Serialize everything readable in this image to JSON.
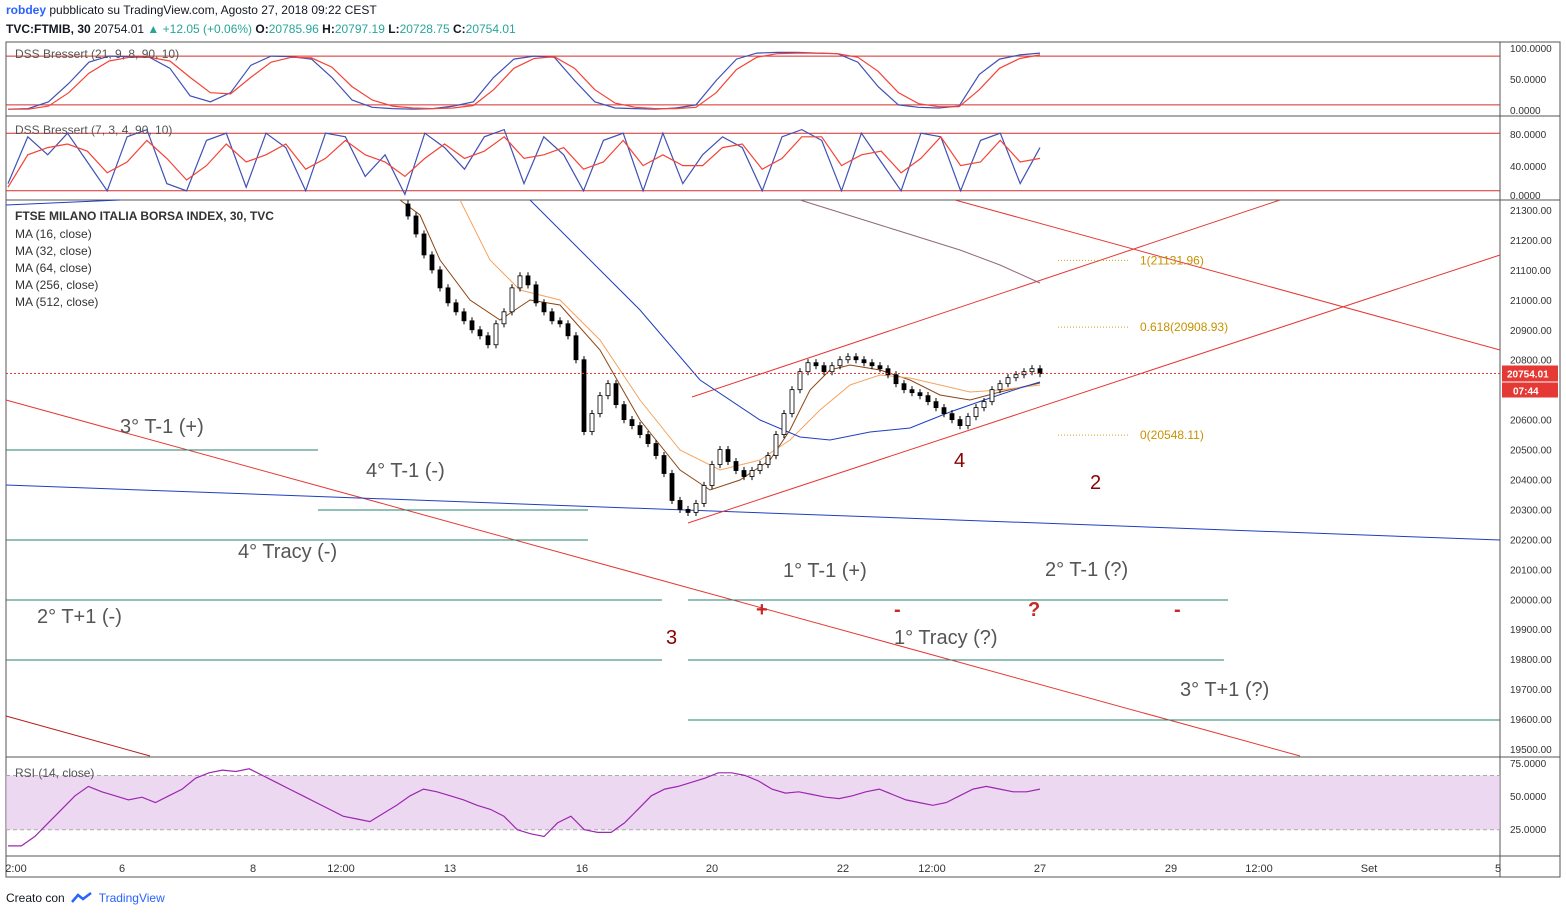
{
  "header": {
    "user": "robdey",
    "published": "pubblicato su TradingView.com, Agosto 27, 2018 09:22 CEST",
    "symbol": "TVC:FTMIB, 30",
    "last": "20754.01",
    "arrow": "▲",
    "change": "+12.05 (+0.06%)",
    "o_label": "O:",
    "o": "20785.96",
    "h_label": "H:",
    "h": "20797.19",
    "l_label": "L:",
    "l": "20728.75",
    "c_label": "C:",
    "c": "20754.01"
  },
  "footer": {
    "created": "Creato con",
    "brand": "TradingView"
  },
  "legend": {
    "title": "FTSE MILANO ITALIA BORSA INDEX, 30, TVC",
    "ma": [
      "MA (16, close)",
      "MA (32, close)",
      "MA (64, close)",
      "MA (256, close)",
      "MA (512, close)"
    ]
  },
  "chart_data": [
    {
      "type": "line",
      "title": "DSS Bressert (21, 9, 8, 90, 10)",
      "ylim": [
        0,
        100
      ],
      "ticks": [
        "100.0000",
        "50.0000",
        "0.0000"
      ],
      "levels": [
        90,
        10
      ],
      "colors": {
        "fast": "#3f51b5",
        "slow": "#f44336",
        "level": "#d32f2f"
      },
      "series": [
        {
          "values": [
            3,
            4,
            15,
            45,
            80,
            90,
            89,
            88,
            70,
            25,
            15,
            30,
            75,
            90,
            89,
            85,
            55,
            18,
            6,
            4,
            3,
            4,
            8,
            15,
            55,
            85,
            90,
            88,
            50,
            15,
            5,
            4,
            3,
            5,
            10,
            50,
            85,
            95,
            96,
            96,
            95,
            94,
            80,
            40,
            10,
            6,
            5,
            8,
            60,
            85,
            92,
            95
          ]
        },
        {
          "values": [
            3,
            3,
            8,
            30,
            62,
            82,
            88,
            88,
            82,
            55,
            30,
            28,
            55,
            80,
            88,
            87,
            72,
            40,
            18,
            8,
            5,
            4,
            5,
            9,
            35,
            70,
            86,
            89,
            70,
            35,
            13,
            6,
            4,
            4,
            6,
            30,
            68,
            88,
            94,
            95,
            95,
            94,
            88,
            65,
            30,
            12,
            7,
            7,
            35,
            70,
            86,
            92
          ]
        }
      ]
    },
    {
      "type": "line",
      "title": "DSS Bressert (7, 3, 4, 90, 10)",
      "ylim": [
        0,
        100
      ],
      "ticks": [
        "80.0000",
        "40.0000",
        "0.0000"
      ],
      "levels": [
        90,
        10
      ],
      "colors": {
        "fast": "#3f51b5",
        "slow": "#f44336",
        "level": "#d32f2f"
      },
      "series": [
        {
          "values": [
            20,
            85,
            60,
            90,
            50,
            10,
            85,
            95,
            20,
            10,
            80,
            90,
            15,
            90,
            70,
            10,
            90,
            85,
            30,
            60,
            5,
            90,
            70,
            40,
            85,
            95,
            20,
            85,
            60,
            10,
            80,
            90,
            10,
            90,
            20,
            60,
            85,
            70,
            10,
            85,
            95,
            80,
            10,
            90,
            50,
            10,
            90,
            85,
            10,
            80,
            90,
            20,
            70
          ]
        },
        {
          "values": [
            15,
            60,
            70,
            75,
            65,
            35,
            50,
            80,
            55,
            25,
            45,
            75,
            50,
            60,
            75,
            40,
            55,
            80,
            60,
            50,
            30,
            55,
            75,
            55,
            65,
            85,
            55,
            60,
            70,
            40,
            50,
            80,
            45,
            60,
            45,
            45,
            70,
            75,
            40,
            55,
            85,
            85,
            45,
            60,
            65,
            35,
            55,
            85,
            45,
            50,
            80,
            50,
            55
          ]
        }
      ]
    },
    {
      "type": "candlestick",
      "title": "FTSE MILANO ITALIA BORSA INDEX, 30, TVC",
      "x": [
        "2:00",
        "6",
        "8",
        "12:00",
        "13",
        "16",
        "20",
        "22",
        "12:00",
        "27",
        "29",
        "12:00",
        "Set",
        "5"
      ],
      "ylim": [
        19450,
        21350
      ],
      "yticks": [
        "21300.00",
        "21200.00",
        "21100.00",
        "21000.00",
        "20900.00",
        "20800.00",
        "20700.00",
        "20600.00",
        "20500.00",
        "20400.00",
        "20300.00",
        "20200.00",
        "20100.00",
        "20000.00",
        "19900.00",
        "19800.00",
        "19700.00",
        "19600.00",
        "19500.00"
      ],
      "close_path": [
        21320,
        21280,
        21220,
        21150,
        21100,
        21040,
        20990,
        20960,
        20930,
        20900,
        20880,
        20850,
        20920,
        20960,
        21040,
        21080,
        21050,
        20990,
        20960,
        20930,
        20920,
        20880,
        20800,
        20560,
        20620,
        20680,
        20720,
        20650,
        20600,
        20580,
        20550,
        20520,
        20480,
        20420,
        20330,
        20300,
        20290,
        20320,
        20380,
        20450,
        20500,
        20460,
        20430,
        20410,
        20430,
        20450,
        20480,
        20550,
        20620,
        20700,
        20760,
        20790,
        20780,
        20760,
        20780,
        20800,
        20810,
        20800,
        20790,
        20780,
        20770,
        20750,
        20720,
        20700,
        20690,
        20680,
        20660,
        20640,
        20620,
        20600,
        20580,
        20610,
        20640,
        20660,
        20700,
        20720,
        20740,
        20750,
        20760,
        20770,
        20754
      ],
      "last_price": "20754.01",
      "countdown": "07:44",
      "fib": [
        {
          "label": "1(21131.96)",
          "value": 21131.96
        },
        {
          "label": "0.618(20908.93)",
          "value": 20908.93
        },
        {
          "label": "0(20548.11)",
          "value": 20548.11
        }
      ],
      "annotations": [
        "3° T-1 (+)",
        "4° T-1 (-)",
        "4° Tracy (-)",
        "2° T+1 (-)",
        "1° T-1 (+)",
        "2° T-1 (?)",
        "1° Tracy (?)",
        "3° T+1 (?)",
        "3",
        "4",
        "2",
        "+",
        "-",
        "?",
        "-"
      ]
    },
    {
      "type": "line",
      "title": "RSI (14, close)",
      "ylim": [
        15,
        80
      ],
      "ticks": [
        "75.0000",
        "50.0000",
        "25.0000"
      ],
      "band": [
        70,
        30
      ],
      "colors": {
        "line": "#9c27b0",
        "band": "#e1bee7"
      },
      "series": [
        {
          "values": [
            18,
            18,
            25,
            35,
            45,
            55,
            62,
            58,
            55,
            52,
            54,
            50,
            55,
            60,
            68,
            72,
            74,
            73,
            75,
            70,
            65,
            60,
            55,
            50,
            45,
            40,
            38,
            36,
            42,
            48,
            55,
            60,
            58,
            55,
            52,
            48,
            45,
            40,
            30,
            27,
            25,
            35,
            40,
            30,
            28,
            28,
            35,
            45,
            55,
            60,
            62,
            65,
            68,
            72,
            72,
            70,
            66,
            60,
            57,
            58,
            56,
            54,
            53,
            55,
            58,
            60,
            56,
            52,
            50,
            48,
            50,
            55,
            60,
            62,
            60,
            58,
            58,
            60
          ]
        }
      ]
    }
  ]
}
